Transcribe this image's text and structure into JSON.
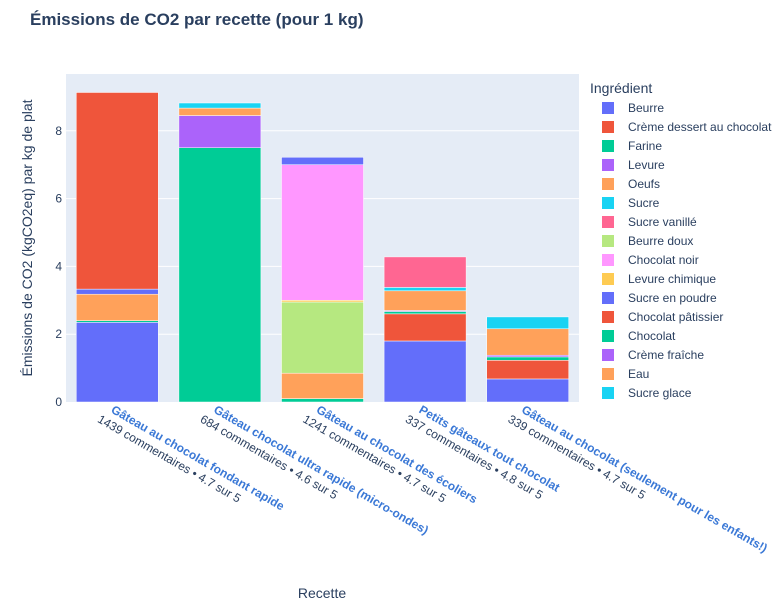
{
  "chart_data": {
    "type": "bar",
    "barmode": "stack",
    "title": "Émissions de CO2 par recette (pour 1 kg)",
    "xlabel": "Recette",
    "ylabel": "Émissions de CO2 (kgCO2eq) par kg de plat",
    "ylim": [
      0,
      9.5
    ],
    "yticks": [
      0,
      2,
      4,
      6,
      8
    ],
    "grid": true,
    "legend_title": "Ingrédient",
    "legend_position": "right",
    "categories": [
      {
        "name": "Gâteau au chocolat fondant rapide",
        "sub": "1439 commentaires • 4.7 sur 5"
      },
      {
        "name": "Gâteau chocolat ultra rapide (micro-ondes)",
        "sub": "684 commentaires • 4.6 sur 5"
      },
      {
        "name": "Gâteau au chocolat des écoliers",
        "sub": "1241 commentaires • 4.7 sur 5"
      },
      {
        "name": "Petits gâteaux tout chocolat",
        "sub": "337 commentaires • 4.8 sur 5"
      },
      {
        "name": "Gâteau au chocolat (seulement pour les enfants!)",
        "sub": "339 commentaires • 4.7 sur 5"
      }
    ],
    "series": [
      {
        "name": "Beurre",
        "color": "#636efa",
        "values": [
          2.35,
          0,
          0,
          0,
          0
        ]
      },
      {
        "name": "Crème dessert au chocolat",
        "color": "#EF553B",
        "values": [
          0,
          0,
          0,
          0,
          0
        ]
      },
      {
        "name": "Farine",
        "color": "#00cc96",
        "values": [
          0.05,
          7.5,
          0.1,
          0.07,
          0.07
        ]
      },
      {
        "name": "Levure",
        "color": "#ab63fa",
        "values": [
          0,
          0,
          0,
          0,
          0
        ]
      },
      {
        "name": "Oeufs",
        "color": "#FFA15A",
        "values": [
          0.78,
          0.22,
          0.75,
          0.58,
          0.78
        ]
      },
      {
        "name": "Sucre",
        "color": "#19d3f3",
        "values": [
          0.02,
          0.15,
          0.05,
          0.1,
          0.35
        ]
      },
      {
        "name": "Sucre vanillé",
        "color": "#FF6692",
        "values": [
          0,
          0,
          0,
          0.9,
          0
        ]
      },
      {
        "name": "Beurre doux",
        "color": "#B6E880",
        "values": [
          0,
          0,
          2.1,
          0,
          0
        ]
      },
      {
        "name": "Chocolat noir",
        "color": "#FF97FF",
        "values": [
          0,
          0,
          4.0,
          0,
          0
        ]
      },
      {
        "name": "Levure chimique",
        "color": "#FECB52",
        "values": [
          0,
          0,
          0.05,
          0,
          0
        ]
      },
      {
        "name": "Sucre en poudre",
        "color": "#636efa",
        "values": [
          0.15,
          0,
          0.22,
          0,
          0
        ]
      },
      {
        "name": "Chocolat pâtissier",
        "color": "#EF553B",
        "values": [
          5.8,
          0,
          0,
          0,
          0
        ]
      },
      {
        "name": "Chocolat",
        "color": "#00cc96",
        "values": [
          0,
          0,
          0,
          0,
          0
        ]
      },
      {
        "name": "Crème fraîche",
        "color": "#ab63fa",
        "values": [
          0,
          0.95,
          0,
          0,
          0
        ]
      },
      {
        "name": "Eau",
        "color": "#FFA15A",
        "values": [
          0,
          0,
          0,
          0,
          0
        ]
      },
      {
        "name": "Sucre glace",
        "color": "#19d3f3",
        "values": [
          0,
          0,
          0,
          0,
          0
        ]
      }
    ],
    "stack_order": [
      [
        "Beurre",
        "Farine",
        "Oeufs",
        "Sucre en poudre",
        "Chocolat pâtissier"
      ],
      [
        "Farine",
        "Crème fraîche",
        "Oeufs",
        "Sucre"
      ],
      [
        "Farine",
        "Oeufs",
        "Beurre doux",
        "Levure chimique",
        "Chocolat noir",
        "Sucre en poudre"
      ],
      [],
      []
    ],
    "extra_segments": [
      [],
      [],
      [],
      [
        {
          "series": "Beurre",
          "value": 1.8
        },
        {
          "series": "Crème dessert au chocolat",
          "value": 0.8
        },
        {
          "series": "Farine",
          "value": 0.07
        },
        {
          "series": "Levure",
          "value": 0.03
        },
        {
          "series": "Oeufs",
          "value": 0.58
        },
        {
          "series": "Sucre",
          "value": 0.1
        },
        {
          "series": "Sucre vanillé",
          "value": 0.9
        }
      ],
      [
        {
          "series": "Beurre",
          "value": 0.68
        },
        {
          "series": "Crème dessert au chocolat",
          "value": 0.55
        },
        {
          "series": "Chocolat",
          "value": 0.1
        },
        {
          "series": "Levure",
          "value": 0.05
        },
        {
          "series": "Eau",
          "value": 0.78
        },
        {
          "series": "Sucre glace",
          "value": 0.35
        }
      ]
    ]
  }
}
